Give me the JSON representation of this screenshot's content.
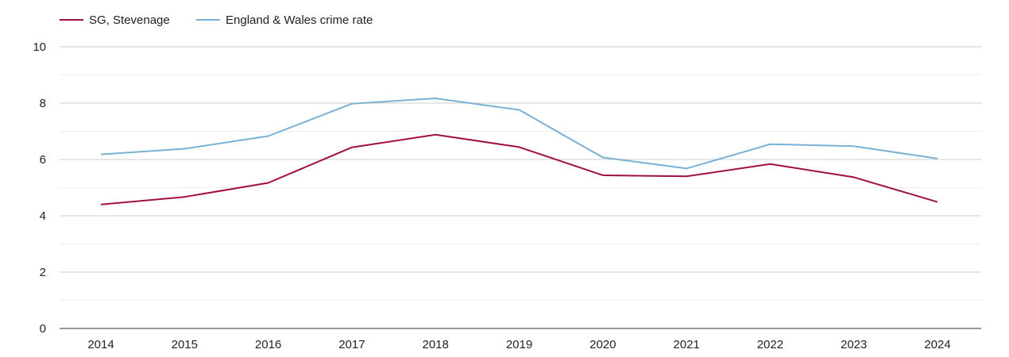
{
  "chart_data": {
    "type": "line",
    "title": "",
    "xlabel": "",
    "ylabel": "",
    "x": [
      "2014",
      "2015",
      "2016",
      "2017",
      "2018",
      "2019",
      "2020",
      "2021",
      "2022",
      "2023",
      "2024"
    ],
    "ylim": [
      0,
      10
    ],
    "yticks": [
      "0",
      "2",
      "4",
      "6",
      "8",
      "10"
    ],
    "grid": true,
    "minor_grid": true,
    "legend_position": "top-left",
    "series": [
      {
        "name": "SG, Stevenage",
        "color": "#a0103a",
        "values": [
          4.4,
          4.67,
          5.17,
          6.43,
          6.88,
          6.44,
          5.44,
          5.4,
          5.84,
          5.37,
          4.49
        ]
      },
      {
        "name": "England & Wales crime rate",
        "color": "#7ab0d4",
        "values": [
          6.18,
          6.38,
          6.83,
          7.98,
          8.17,
          7.76,
          6.07,
          5.68,
          6.54,
          6.47,
          6.03
        ]
      }
    ]
  }
}
